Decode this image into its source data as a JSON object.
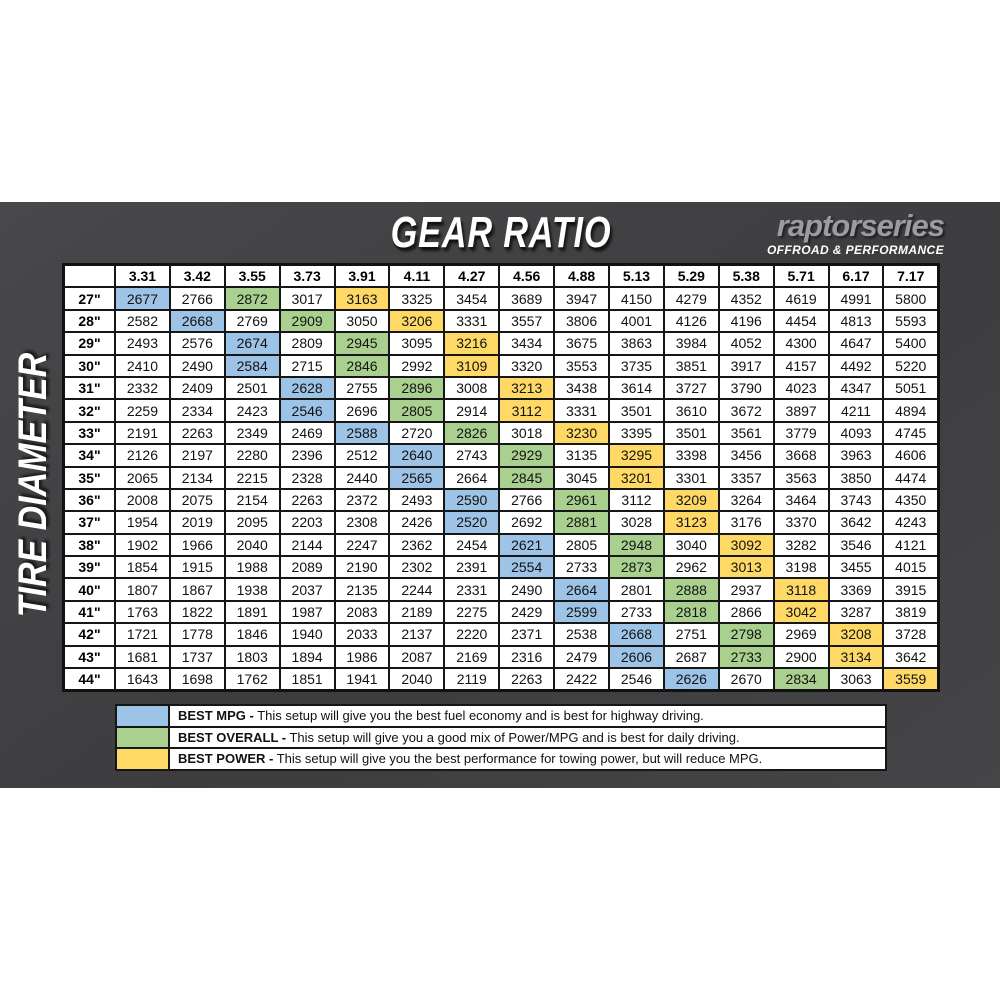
{
  "page": {
    "title": "GEAR RATIO",
    "brand": "raptorseries",
    "brand_tagline": "OFFROAD & PERFORMANCE",
    "y_axis_label": "TIRE DIAMETER"
  },
  "colors": {
    "best_mpg": "#9DC3E6",
    "best_overall": "#A9D08E",
    "best_power": "#FFD966",
    "panel": "#404042"
  },
  "chart_data": {
    "type": "table",
    "title": "GEAR RATIO",
    "column_axis_label": "GEAR RATIO",
    "row_axis_label": "TIRE DIAMETER",
    "columns": [
      "3.31",
      "3.42",
      "3.55",
      "3.73",
      "3.91",
      "4.11",
      "4.27",
      "4.56",
      "4.88",
      "5.13",
      "5.29",
      "5.38",
      "5.71",
      "6.17",
      "7.17"
    ],
    "rows": [
      {
        "tire": "27\"",
        "values": [
          2677,
          2766,
          2872,
          3017,
          3163,
          3325,
          3454,
          3689,
          3947,
          4150,
          4279,
          4352,
          4619,
          4991,
          5800
        ],
        "best_mpg_col": 0,
        "best_overall_col": 2,
        "best_power_col": 4
      },
      {
        "tire": "28\"",
        "values": [
          2582,
          2668,
          2769,
          2909,
          3050,
          3206,
          3331,
          3557,
          3806,
          4001,
          4126,
          4196,
          4454,
          4813,
          5593
        ],
        "best_mpg_col": 1,
        "best_overall_col": 3,
        "best_power_col": 5
      },
      {
        "tire": "29\"",
        "values": [
          2493,
          2576,
          2674,
          2809,
          2945,
          3095,
          3216,
          3434,
          3675,
          3863,
          3984,
          4052,
          4300,
          4647,
          5400
        ],
        "best_mpg_col": 2,
        "best_overall_col": 4,
        "best_power_col": 6
      },
      {
        "tire": "30\"",
        "values": [
          2410,
          2490,
          2584,
          2715,
          2846,
          2992,
          3109,
          3320,
          3553,
          3735,
          3851,
          3917,
          4157,
          4492,
          5220
        ],
        "best_mpg_col": 2,
        "best_overall_col": 4,
        "best_power_col": 6
      },
      {
        "tire": "31\"",
        "values": [
          2332,
          2409,
          2501,
          2628,
          2755,
          2896,
          3008,
          3213,
          3438,
          3614,
          3727,
          3790,
          4023,
          4347,
          5051
        ],
        "best_mpg_col": 3,
        "best_overall_col": 5,
        "best_power_col": 7
      },
      {
        "tire": "32\"",
        "values": [
          2259,
          2334,
          2423,
          2546,
          2696,
          2805,
          2914,
          3112,
          3331,
          3501,
          3610,
          3672,
          3897,
          4211,
          4894
        ],
        "best_mpg_col": 3,
        "best_overall_col": 5,
        "best_power_col": 7
      },
      {
        "tire": "33\"",
        "values": [
          2191,
          2263,
          2349,
          2469,
          2588,
          2720,
          2826,
          3018,
          3230,
          3395,
          3501,
          3561,
          3779,
          4093,
          4745
        ],
        "best_mpg_col": 4,
        "best_overall_col": 6,
        "best_power_col": 8
      },
      {
        "tire": "34\"",
        "values": [
          2126,
          2197,
          2280,
          2396,
          2512,
          2640,
          2743,
          2929,
          3135,
          3295,
          3398,
          3456,
          3668,
          3963,
          4606
        ],
        "best_mpg_col": 5,
        "best_overall_col": 7,
        "best_power_col": 9
      },
      {
        "tire": "35\"",
        "values": [
          2065,
          2134,
          2215,
          2328,
          2440,
          2565,
          2664,
          2845,
          3045,
          3201,
          3301,
          3357,
          3563,
          3850,
          4474
        ],
        "best_mpg_col": 5,
        "best_overall_col": 7,
        "best_power_col": 9
      },
      {
        "tire": "36\"",
        "values": [
          2008,
          2075,
          2154,
          2263,
          2372,
          2493,
          2590,
          2766,
          2961,
          3112,
          3209,
          3264,
          3464,
          3743,
          4350
        ],
        "best_mpg_col": 6,
        "best_overall_col": 8,
        "best_power_col": 10
      },
      {
        "tire": "37\"",
        "values": [
          1954,
          2019,
          2095,
          2203,
          2308,
          2426,
          2520,
          2692,
          2881,
          3028,
          3123,
          3176,
          3370,
          3642,
          4243
        ],
        "best_mpg_col": 6,
        "best_overall_col": 8,
        "best_power_col": 10
      },
      {
        "tire": "38\"",
        "values": [
          1902,
          1966,
          2040,
          2144,
          2247,
          2362,
          2454,
          2621,
          2805,
          2948,
          3040,
          3092,
          3282,
          3546,
          4121
        ],
        "best_mpg_col": 7,
        "best_overall_col": 9,
        "best_power_col": 11
      },
      {
        "tire": "39\"",
        "values": [
          1854,
          1915,
          1988,
          2089,
          2190,
          2302,
          2391,
          2554,
          2733,
          2873,
          2962,
          3013,
          3198,
          3455,
          4015
        ],
        "best_mpg_col": 7,
        "best_overall_col": 9,
        "best_power_col": 11
      },
      {
        "tire": "40\"",
        "values": [
          1807,
          1867,
          1938,
          2037,
          2135,
          2244,
          2331,
          2490,
          2664,
          2801,
          2888,
          2937,
          3118,
          3369,
          3915
        ],
        "best_mpg_col": 8,
        "best_overall_col": 10,
        "best_power_col": 12
      },
      {
        "tire": "41\"",
        "values": [
          1763,
          1822,
          1891,
          1987,
          2083,
          2189,
          2275,
          2429,
          2599,
          2733,
          2818,
          2866,
          3042,
          3287,
          3819
        ],
        "best_mpg_col": 8,
        "best_overall_col": 10,
        "best_power_col": 12
      },
      {
        "tire": "42\"",
        "values": [
          1721,
          1778,
          1846,
          1940,
          2033,
          2137,
          2220,
          2371,
          2538,
          2668,
          2751,
          2798,
          2969,
          3208,
          3728
        ],
        "best_mpg_col": 9,
        "best_overall_col": 11,
        "best_power_col": 13
      },
      {
        "tire": "43\"",
        "values": [
          1681,
          1737,
          1803,
          1894,
          1986,
          2087,
          2169,
          2316,
          2479,
          2606,
          2687,
          2733,
          2900,
          3134,
          3642
        ],
        "best_mpg_col": 9,
        "best_overall_col": 11,
        "best_power_col": 13
      },
      {
        "tire": "44\"",
        "values": [
          1643,
          1698,
          1762,
          1851,
          1941,
          2040,
          2119,
          2263,
          2422,
          2546,
          2626,
          2670,
          2834,
          3063,
          3559
        ],
        "best_mpg_col": 10,
        "best_overall_col": 12,
        "best_power_col": 14
      }
    ]
  },
  "legend": [
    {
      "key": "best_mpg",
      "label": "BEST MPG -",
      "text": "This setup will give you the best fuel economy and is best for highway driving."
    },
    {
      "key": "best_overall",
      "label": "BEST OVERALL -",
      "text": "This setup will give you a good mix of Power/MPG and is best for daily driving."
    },
    {
      "key": "best_power",
      "label": "BEST POWER -",
      "text": "This setup will give you the best performance for towing power, but will reduce MPG."
    }
  ]
}
